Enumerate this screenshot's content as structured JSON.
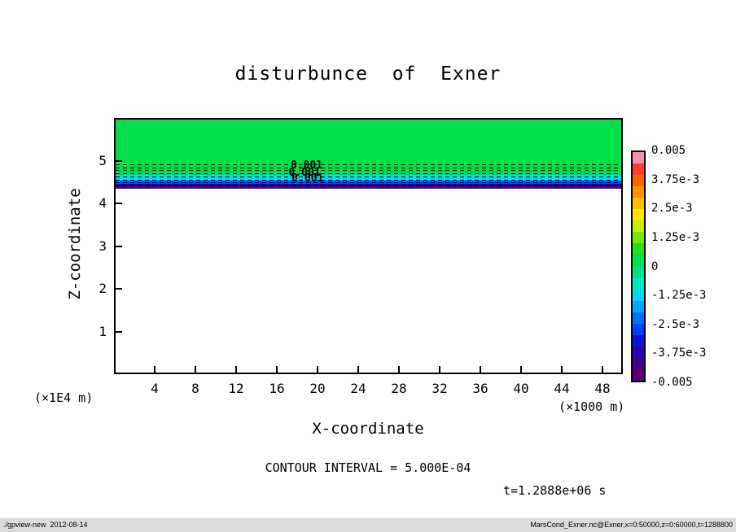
{
  "chart_data": {
    "type": "heatmap",
    "title": "disturbunce  of  Exner",
    "xlabel": "X-coordinate",
    "ylabel": "Z-coordinate",
    "x_unit": "(×1000 m)",
    "y_unit": "(×1E4 m)",
    "xlim": [
      0,
      50
    ],
    "ylim": [
      0,
      6
    ],
    "x_ticks": [
      4,
      8,
      12,
      16,
      20,
      24,
      28,
      32,
      36,
      40,
      44,
      48
    ],
    "y_ticks": [
      1,
      2,
      3,
      4,
      5
    ],
    "contour_interval_text": "CONTOUR INTERVAL = 5.000E-04",
    "time_text": "t=1.2888e+06 s",
    "fill_bands": [
      {
        "z_from": 4.7,
        "z_to": 6.0,
        "color": "#00e04c",
        "value": "0 to -1.25e-3"
      },
      {
        "z_from": 4.57,
        "z_to": 4.7,
        "color": "#00dcf0",
        "value": "-1.25e-3 to -2.5e-3"
      },
      {
        "z_from": 4.5,
        "z_to": 4.57,
        "color": "#0050ff",
        "value": "-2.5e-3 to -3.75e-3"
      },
      {
        "z_from": 4.44,
        "z_to": 4.5,
        "color": "#0d08b4",
        "value": "-3.75e-3 to -0.005"
      },
      {
        "z_from": 4.39,
        "z_to": 4.44,
        "color": "#58006e",
        "value": "-0.005"
      }
    ],
    "contour_line_z": [
      4.95,
      4.88,
      4.81,
      4.74,
      4.67,
      4.6,
      4.53,
      4.46
    ],
    "contour_labels": [
      {
        "text": "0.001",
        "x": 17.2,
        "z": 4.93
      },
      {
        "text": "0.001",
        "x": 17.0,
        "z": 4.76
      },
      {
        "text": "0.001",
        "x": 17.3,
        "z": 4.63
      }
    ],
    "colorbar": {
      "labels": [
        "0.005",
        "3.75e-3",
        "2.5e-3",
        "1.25e-3",
        "0",
        "-1.25e-3",
        "-2.5e-3",
        "-3.75e-3",
        "-0.005"
      ],
      "colors_top_to_bottom": [
        "#ff8ca8",
        "#ff3c30",
        "#ff6000",
        "#ff9000",
        "#ffc000",
        "#ffe800",
        "#c8f000",
        "#78e800",
        "#28e020",
        "#00e048",
        "#00e088",
        "#00e8c0",
        "#00d8f0",
        "#00a8ff",
        "#0070ff",
        "#0040ff",
        "#1010d8",
        "#2800b0",
        "#440088",
        "#58006e"
      ]
    }
  },
  "footer": {
    "left": "./gpview-new  2012-08-14",
    "right": "MarsCond_Exner.nc@Exner,x=0:50000,z=0:60000,t=1288800"
  }
}
